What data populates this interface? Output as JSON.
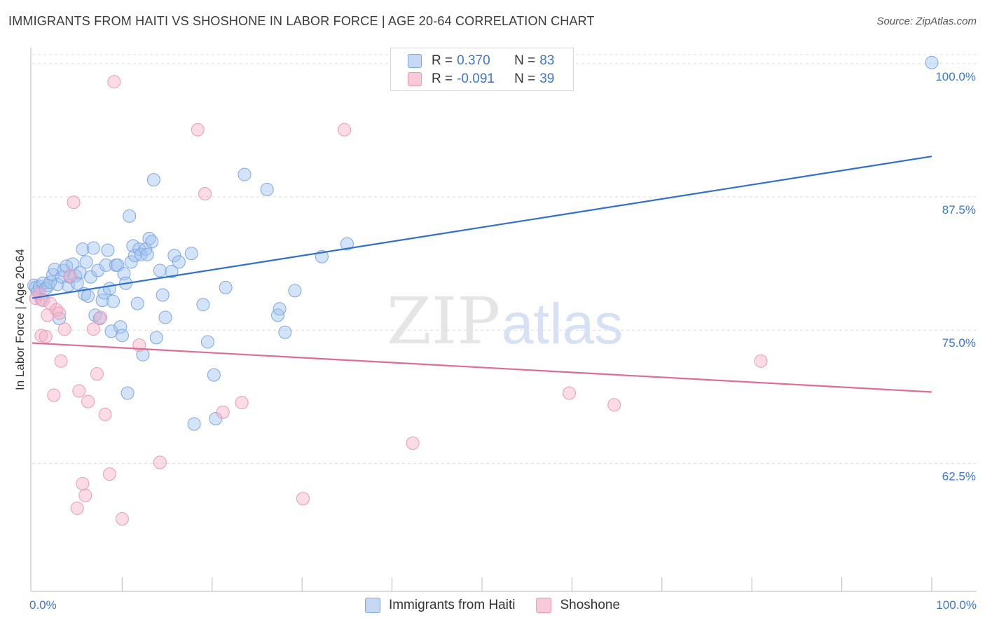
{
  "title": "IMMIGRANTS FROM HAITI VS SHOSHONE IN LABOR FORCE | AGE 20-64 CORRELATION CHART",
  "source": "Source: ZipAtlas.com",
  "watermark": {
    "zip": "ZIP",
    "atlas": "atlas"
  },
  "legend": {
    "rows": [
      {
        "r_label": "R =",
        "r_value": "0.370",
        "n_label": "N =",
        "n_value": "83"
      },
      {
        "r_label": "R =",
        "r_value": "-0.091",
        "n_label": "N =",
        "n_value": "39"
      }
    ]
  },
  "chart_data": {
    "type": "scatter",
    "title": "IMMIGRANTS FROM HAITI VS SHOSHONE IN LABOR FORCE | AGE 20-64 CORRELATION CHART",
    "xlabel": "",
    "ylabel": "In Labor Force | Age 20-64",
    "xlim": [
      0,
      100
    ],
    "ylim": [
      50.5,
      101.5
    ],
    "x_tick_labels": [
      "0.0%",
      "100.0%"
    ],
    "y_ticks": [
      62.5,
      75.0,
      87.5,
      100.0
    ],
    "y_tick_labels": [
      "62.5%",
      "75.0%",
      "87.5%",
      "100.0%"
    ],
    "grid": "horizontal dashed",
    "colors": {
      "Immigrants from Haiti": "#3d77cc",
      "Shoshone": "#e06b96"
    },
    "series": [
      {
        "name": "Immigrants from Haiti",
        "color": "#3d77cc",
        "trend": {
          "x": [
            0,
            100
          ],
          "y": [
            78.0,
            91.3
          ]
        },
        "points": [
          [
            0.2,
            79.2
          ],
          [
            0.4,
            79.0
          ],
          [
            0.6,
            78.6
          ],
          [
            0.8,
            79.1
          ],
          [
            1.0,
            77.9
          ],
          [
            1.2,
            79.4
          ],
          [
            1.5,
            78.9
          ],
          [
            1.8,
            79.2
          ],
          [
            2.0,
            79.5
          ],
          [
            2.3,
            80.2
          ],
          [
            2.5,
            80.7
          ],
          [
            2.8,
            79.3
          ],
          [
            3.0,
            76.1
          ],
          [
            3.3,
            80.0
          ],
          [
            3.5,
            80.6
          ],
          [
            3.8,
            81.0
          ],
          [
            4.0,
            79.2
          ],
          [
            4.2,
            80.0
          ],
          [
            4.5,
            81.2
          ],
          [
            4.8,
            80.1
          ],
          [
            5.0,
            79.4
          ],
          [
            5.3,
            80.4
          ],
          [
            5.6,
            82.6
          ],
          [
            5.8,
            78.4
          ],
          [
            6.0,
            81.4
          ],
          [
            6.2,
            78.2
          ],
          [
            6.5,
            80.0
          ],
          [
            6.8,
            82.7
          ],
          [
            7.0,
            76.4
          ],
          [
            7.3,
            80.6
          ],
          [
            7.5,
            76.1
          ],
          [
            7.8,
            77.8
          ],
          [
            8.0,
            78.5
          ],
          [
            8.2,
            81.1
          ],
          [
            8.4,
            82.5
          ],
          [
            8.6,
            78.9
          ],
          [
            8.8,
            74.9
          ],
          [
            9.0,
            77.7
          ],
          [
            9.3,
            81.1
          ],
          [
            9.5,
            81.1
          ],
          [
            9.8,
            75.3
          ],
          [
            10.0,
            74.5
          ],
          [
            10.2,
            80.3
          ],
          [
            10.4,
            79.4
          ],
          [
            10.6,
            69.1
          ],
          [
            10.8,
            85.7
          ],
          [
            11.0,
            81.4
          ],
          [
            11.2,
            82.9
          ],
          [
            11.4,
            82.0
          ],
          [
            11.7,
            77.5
          ],
          [
            11.9,
            82.6
          ],
          [
            12.1,
            82.1
          ],
          [
            12.3,
            72.7
          ],
          [
            12.6,
            82.6
          ],
          [
            12.8,
            82.1
          ],
          [
            13.0,
            83.6
          ],
          [
            13.3,
            83.3
          ],
          [
            13.5,
            89.1
          ],
          [
            13.8,
            74.3
          ],
          [
            14.2,
            80.6
          ],
          [
            14.5,
            78.3
          ],
          [
            14.8,
            76.2
          ],
          [
            15.5,
            80.5
          ],
          [
            15.8,
            82.0
          ],
          [
            16.3,
            81.4
          ],
          [
            17.7,
            82.2
          ],
          [
            18.0,
            66.2
          ],
          [
            19.0,
            77.4
          ],
          [
            19.5,
            73.9
          ],
          [
            20.2,
            70.8
          ],
          [
            20.4,
            66.7
          ],
          [
            21.5,
            79.0
          ],
          [
            23.6,
            89.6
          ],
          [
            26.1,
            88.2
          ],
          [
            27.3,
            76.4
          ],
          [
            27.5,
            77.0
          ],
          [
            28.1,
            74.8
          ],
          [
            29.2,
            78.7
          ],
          [
            32.2,
            81.9
          ],
          [
            35.0,
            83.1
          ],
          [
            100.0,
            100.1
          ]
        ]
      },
      {
        "name": "Shoshone",
        "color": "#e06b96",
        "trend": {
          "x": [
            0,
            100
          ],
          "y": [
            73.8,
            69.2
          ]
        },
        "points": [
          [
            0.4,
            78.0
          ],
          [
            0.8,
            78.4
          ],
          [
            1.0,
            74.5
          ],
          [
            1.2,
            77.8
          ],
          [
            1.5,
            74.4
          ],
          [
            1.7,
            76.4
          ],
          [
            2.0,
            77.5
          ],
          [
            2.4,
            68.9
          ],
          [
            2.7,
            76.9
          ],
          [
            3.0,
            76.6
          ],
          [
            3.2,
            72.1
          ],
          [
            3.6,
            75.1
          ],
          [
            4.2,
            80.1
          ],
          [
            4.6,
            87.0
          ],
          [
            5.0,
            58.3
          ],
          [
            5.2,
            69.3
          ],
          [
            5.6,
            60.6
          ],
          [
            5.9,
            59.5
          ],
          [
            6.2,
            68.3
          ],
          [
            6.8,
            75.1
          ],
          [
            7.2,
            70.9
          ],
          [
            7.6,
            76.2
          ],
          [
            8.1,
            67.1
          ],
          [
            8.6,
            61.5
          ],
          [
            9.1,
            98.3
          ],
          [
            10.0,
            57.3
          ],
          [
            11.9,
            73.6
          ],
          [
            14.2,
            62.6
          ],
          [
            18.4,
            93.8
          ],
          [
            19.2,
            87.8
          ],
          [
            21.2,
            67.3
          ],
          [
            23.3,
            68.2
          ],
          [
            30.1,
            59.2
          ],
          [
            34.7,
            93.8
          ],
          [
            42.3,
            64.4
          ],
          [
            59.7,
            69.1
          ],
          [
            64.7,
            68.0
          ],
          [
            81.0,
            72.1
          ]
        ]
      }
    ],
    "bottom_legend": [
      "Immigrants from Haiti",
      "Shoshone"
    ]
  }
}
